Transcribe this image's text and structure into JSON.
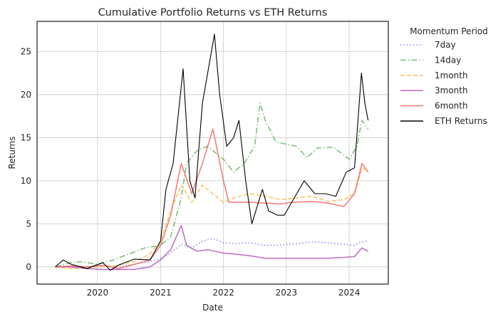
{
  "chart_data": {
    "type": "line",
    "title": "Cumulative Portfolio Returns vs ETH Returns",
    "xlabel": "Date",
    "ylabel": "Returns",
    "xlim": [
      "2019-01-15",
      "2024-08-15"
    ],
    "ylim": [
      -2,
      28.5
    ],
    "xticks": [
      {
        "date": "2020-01-01",
        "label": "2020"
      },
      {
        "date": "2021-01-01",
        "label": "2021"
      },
      {
        "date": "2022-01-01",
        "label": "2022"
      },
      {
        "date": "2023-01-01",
        "label": "2023"
      },
      {
        "date": "2024-01-01",
        "label": "2024"
      }
    ],
    "yticks": [
      0,
      5,
      10,
      15,
      20,
      25
    ],
    "grid": true,
    "legend": {
      "title": "Momentum Period",
      "placement": "outside upper right"
    },
    "series": [
      {
        "name": "7day",
        "color": "#6b6ff0",
        "dash": "dotted",
        "points": [
          [
            "2019-05-01",
            0
          ],
          [
            "2019-08-01",
            0.05
          ],
          [
            "2019-11-01",
            0
          ],
          [
            "2020-02-01",
            0.1
          ],
          [
            "2020-05-01",
            0
          ],
          [
            "2020-08-01",
            0.3
          ],
          [
            "2020-11-01",
            0.6
          ],
          [
            "2021-01-01",
            1.0
          ],
          [
            "2021-03-01",
            1.6
          ],
          [
            "2021-05-01",
            2.6
          ],
          [
            "2021-07-01",
            2.2
          ],
          [
            "2021-09-01",
            3.0
          ],
          [
            "2021-11-01",
            3.3
          ],
          [
            "2022-01-01",
            2.8
          ],
          [
            "2022-03-01",
            2.7
          ],
          [
            "2022-06-01",
            2.8
          ],
          [
            "2022-09-01",
            2.5
          ],
          [
            "2022-11-01",
            2.5
          ],
          [
            "2023-03-01",
            2.7
          ],
          [
            "2023-06-01",
            2.9
          ],
          [
            "2023-09-01",
            2.8
          ],
          [
            "2023-12-01",
            2.6
          ],
          [
            "2024-02-01",
            2.5
          ],
          [
            "2024-03-15",
            2.9
          ],
          [
            "2024-04-20",
            3.0
          ]
        ]
      },
      {
        "name": "14day",
        "color": "#5bb15b",
        "dash": "dashdot",
        "points": [
          [
            "2019-05-01",
            0
          ],
          [
            "2019-08-01",
            0.5
          ],
          [
            "2019-10-01",
            0.6
          ],
          [
            "2020-01-01",
            0.3
          ],
          [
            "2020-04-01",
            0.8
          ],
          [
            "2020-07-01",
            1.5
          ],
          [
            "2020-10-01",
            2.2
          ],
          [
            "2021-01-01",
            2.5
          ],
          [
            "2021-03-01",
            3.5
          ],
          [
            "2021-05-01",
            8.0
          ],
          [
            "2021-06-01",
            12.0
          ],
          [
            "2021-08-01",
            13.5
          ],
          [
            "2021-10-01",
            14.0
          ],
          [
            "2022-01-01",
            12.5
          ],
          [
            "2022-03-01",
            11.0
          ],
          [
            "2022-05-01",
            12.0
          ],
          [
            "2022-07-01",
            14.0
          ],
          [
            "2022-08-01",
            19.0
          ],
          [
            "2022-09-01",
            17.0
          ],
          [
            "2022-11-01",
            14.5
          ],
          [
            "2023-03-01",
            14.0
          ],
          [
            "2023-05-01",
            12.7
          ],
          [
            "2023-07-01",
            13.8
          ],
          [
            "2023-10-01",
            13.9
          ],
          [
            "2024-01-01",
            12.5
          ],
          [
            "2024-02-15",
            14.0
          ],
          [
            "2024-03-15",
            17.0
          ],
          [
            "2024-04-20",
            16.0
          ]
        ]
      },
      {
        "name": "1month",
        "color": "#f5b845",
        "dash": "dashed",
        "points": [
          [
            "2019-05-01",
            0
          ],
          [
            "2019-08-01",
            -0.2
          ],
          [
            "2019-11-01",
            -0.1
          ],
          [
            "2020-02-01",
            0
          ],
          [
            "2020-05-01",
            0.2
          ],
          [
            "2020-08-01",
            0.6
          ],
          [
            "2020-11-01",
            1.5
          ],
          [
            "2021-01-01",
            3.0
          ],
          [
            "2021-03-01",
            6.5
          ],
          [
            "2021-05-01",
            9.5
          ],
          [
            "2021-07-01",
            7.5
          ],
          [
            "2021-09-01",
            9.5
          ],
          [
            "2021-11-01",
            8.5
          ],
          [
            "2022-01-01",
            7.5
          ],
          [
            "2022-03-01",
            8.0
          ],
          [
            "2022-06-01",
            8.5
          ],
          [
            "2022-09-01",
            8.2
          ],
          [
            "2022-12-01",
            7.8
          ],
          [
            "2023-03-01",
            8.0
          ],
          [
            "2023-06-01",
            8.2
          ],
          [
            "2023-09-01",
            7.6
          ],
          [
            "2023-12-01",
            7.8
          ],
          [
            "2024-02-01",
            8.5
          ],
          [
            "2024-03-15",
            11.5
          ],
          [
            "2024-04-20",
            11.0
          ]
        ]
      },
      {
        "name": "3month",
        "color": "#b04fb5",
        "dash": "solid",
        "points": [
          [
            "2019-05-01",
            0
          ],
          [
            "2019-08-01",
            0
          ],
          [
            "2019-11-01",
            -0.2
          ],
          [
            "2020-02-01",
            -0.3
          ],
          [
            "2020-05-01",
            -0.3
          ],
          [
            "2020-08-01",
            -0.3
          ],
          [
            "2020-11-01",
            0
          ],
          [
            "2021-01-01",
            0.8
          ],
          [
            "2021-03-01",
            2.0
          ],
          [
            "2021-05-01",
            4.8
          ],
          [
            "2021-06-01",
            2.5
          ],
          [
            "2021-08-01",
            1.8
          ],
          [
            "2021-10-01",
            2.0
          ],
          [
            "2022-01-01",
            1.6
          ],
          [
            "2022-03-01",
            1.5
          ],
          [
            "2022-06-01",
            1.3
          ],
          [
            "2022-09-01",
            1.0
          ],
          [
            "2022-12-01",
            1.0
          ],
          [
            "2023-03-01",
            1.0
          ],
          [
            "2023-06-01",
            1.0
          ],
          [
            "2023-09-01",
            1.0
          ],
          [
            "2023-12-01",
            1.1
          ],
          [
            "2024-02-01",
            1.2
          ],
          [
            "2024-03-15",
            2.2
          ],
          [
            "2024-04-20",
            1.8
          ]
        ]
      },
      {
        "name": "6month",
        "color": "#f0605a",
        "dash": "solid",
        "points": [
          [
            "2019-05-01",
            0
          ],
          [
            "2019-08-01",
            0.1
          ],
          [
            "2019-11-01",
            0
          ],
          [
            "2020-02-01",
            0.2
          ],
          [
            "2020-05-01",
            -0.2
          ],
          [
            "2020-08-01",
            0.3
          ],
          [
            "2020-11-01",
            0.8
          ],
          [
            "2021-01-01",
            2.5
          ],
          [
            "2021-03-01",
            6.0
          ],
          [
            "2021-05-01",
            12.0
          ],
          [
            "2021-07-01",
            8.5
          ],
          [
            "2021-09-01",
            12.0
          ],
          [
            "2021-11-01",
            16.0
          ],
          [
            "2022-01-01",
            10.0
          ],
          [
            "2022-02-01",
            7.5
          ],
          [
            "2022-06-01",
            7.5
          ],
          [
            "2022-09-01",
            7.4
          ],
          [
            "2022-12-01",
            7.3
          ],
          [
            "2023-02-01",
            7.5
          ],
          [
            "2023-06-01",
            7.6
          ],
          [
            "2023-09-01",
            7.4
          ],
          [
            "2023-12-01",
            7.0
          ],
          [
            "2024-02-01",
            8.5
          ],
          [
            "2024-03-15",
            12.0
          ],
          [
            "2024-04-20",
            11.0
          ]
        ]
      },
      {
        "name": "ETH Returns",
        "color": "#000000",
        "dash": "solid",
        "points": [
          [
            "2019-05-01",
            0
          ],
          [
            "2019-06-15",
            0.8
          ],
          [
            "2019-08-01",
            0.3
          ],
          [
            "2019-11-01",
            -0.2
          ],
          [
            "2020-02-01",
            0.5
          ],
          [
            "2020-03-15",
            -0.4
          ],
          [
            "2020-05-01",
            0.2
          ],
          [
            "2020-08-01",
            0.9
          ],
          [
            "2020-11-01",
            0.8
          ],
          [
            "2021-01-01",
            3.0
          ],
          [
            "2021-02-01",
            9.0
          ],
          [
            "2021-03-15",
            12.0
          ],
          [
            "2021-05-12",
            23.0
          ],
          [
            "2021-06-20",
            10.0
          ],
          [
            "2021-07-20",
            8.0
          ],
          [
            "2021-09-01",
            19.0
          ],
          [
            "2021-11-10",
            27.0
          ],
          [
            "2021-12-10",
            20.0
          ],
          [
            "2022-01-20",
            14.0
          ],
          [
            "2022-03-01",
            15.0
          ],
          [
            "2022-04-01",
            17.0
          ],
          [
            "2022-05-10",
            10.0
          ],
          [
            "2022-06-15",
            5.0
          ],
          [
            "2022-08-15",
            9.0
          ],
          [
            "2022-09-20",
            6.5
          ],
          [
            "2022-11-10",
            6.0
          ],
          [
            "2022-12-20",
            6.0
          ],
          [
            "2023-02-01",
            7.5
          ],
          [
            "2023-04-15",
            10.0
          ],
          [
            "2023-06-15",
            8.5
          ],
          [
            "2023-08-15",
            8.5
          ],
          [
            "2023-10-15",
            8.2
          ],
          [
            "2023-12-15",
            11.0
          ],
          [
            "2024-02-01",
            11.5
          ],
          [
            "2024-03-12",
            22.5
          ],
          [
            "2024-04-01",
            19.0
          ],
          [
            "2024-04-20",
            17.0
          ]
        ]
      }
    ]
  }
}
